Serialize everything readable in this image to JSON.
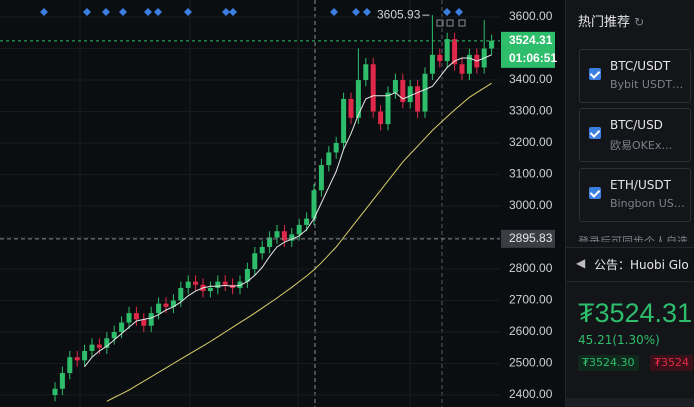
{
  "chart_data": {
    "type": "candlestick",
    "open": [
      2400,
      2420,
      2470,
      2520,
      2510,
      2540,
      2560,
      2550,
      2580,
      2600,
      2630,
      2660,
      2640,
      2620,
      2660,
      2690,
      2680,
      2700,
      2740,
      2760,
      2750,
      2730,
      2740,
      2760,
      2750,
      2740,
      2760,
      2800,
      2850,
      2870,
      2900,
      2920,
      2890,
      2910,
      2940,
      2960,
      3050,
      3130,
      3170,
      3200,
      3340,
      3280,
      3400,
      3450,
      3300,
      3260,
      3360,
      3400,
      3330,
      3380,
      3300,
      3420,
      3480,
      3460,
      3530,
      3450,
      3420,
      3480,
      3440,
      3500
    ],
    "high": [
      2440,
      2490,
      2540,
      2540,
      2560,
      2580,
      2580,
      2600,
      2620,
      2650,
      2680,
      2680,
      2660,
      2680,
      2710,
      2710,
      2720,
      2760,
      2780,
      2780,
      2770,
      2760,
      2780,
      2780,
      2770,
      2780,
      2820,
      2870,
      2890,
      2920,
      2940,
      2940,
      2930,
      2960,
      2980,
      3070,
      3150,
      3190,
      3220,
      3360,
      3360,
      3500,
      3470,
      3470,
      3320,
      3380,
      3420,
      3420,
      3400,
      3400,
      3440,
      3605.93,
      3500,
      3550,
      3550,
      3470,
      3500,
      3500,
      3590,
      3544
    ],
    "low": [
      2380,
      2400,
      2450,
      2490,
      2490,
      2520,
      2530,
      2530,
      2560,
      2580,
      2610,
      2620,
      2600,
      2600,
      2640,
      2660,
      2660,
      2680,
      2720,
      2730,
      2710,
      2710,
      2720,
      2730,
      2720,
      2720,
      2740,
      2780,
      2830,
      2850,
      2880,
      2870,
      2870,
      2890,
      2920,
      2940,
      3030,
      3110,
      3150,
      3180,
      3260,
      3260,
      3380,
      3280,
      3240,
      3240,
      3340,
      3310,
      3310,
      3280,
      3280,
      3400,
      3440,
      3440,
      3430,
      3400,
      3400,
      3420,
      3420,
      3480
    ],
    "close": [
      2420,
      2470,
      2520,
      2510,
      2540,
      2560,
      2550,
      2580,
      2600,
      2630,
      2660,
      2640,
      2620,
      2660,
      2690,
      2680,
      2700,
      2740,
      2760,
      2750,
      2730,
      2740,
      2760,
      2750,
      2740,
      2760,
      2800,
      2850,
      2870,
      2900,
      2920,
      2890,
      2910,
      2940,
      2960,
      3050,
      3130,
      3170,
      3200,
      3340,
      3280,
      3400,
      3450,
      3300,
      3260,
      3360,
      3400,
      3330,
      3380,
      3300,
      3420,
      3480,
      3460,
      3530,
      3450,
      3420,
      3480,
      3440,
      3500,
      3524.31
    ],
    "ma_fast": {
      "color": "#e8e8e8",
      "values": [
        null,
        null,
        null,
        null,
        2490,
        2520,
        2540,
        2555,
        2575,
        2595,
        2615,
        2635,
        2640,
        2645,
        2655,
        2670,
        2680,
        2695,
        2715,
        2730,
        2740,
        2745,
        2745,
        2748,
        2745,
        2748,
        2760,
        2780,
        2805,
        2840,
        2870,
        2885,
        2895,
        2905,
        2925,
        2960,
        3010,
        3060,
        3110,
        3180,
        3230,
        3290,
        3340,
        3350,
        3350,
        3350,
        3360,
        3340,
        3350,
        3360,
        3370,
        3380,
        3410,
        3440,
        3460,
        3470,
        3470,
        3460,
        3470,
        3480
      ]
    },
    "ma_slow": {
      "color": "#d8d06a",
      "values": [
        null,
        null,
        null,
        null,
        null,
        null,
        null,
        2380,
        2392,
        2404,
        2416,
        2430,
        2444,
        2458,
        2472,
        2486,
        2500,
        2514,
        2528,
        2542,
        2556,
        2570,
        2585,
        2600,
        2615,
        2630,
        2645,
        2660,
        2676,
        2692,
        2708,
        2725,
        2742,
        2760,
        2778,
        2798,
        2820,
        2845,
        2870,
        2900,
        2930,
        2960,
        2990,
        3020,
        3050,
        3080,
        3110,
        3140,
        3165,
        3190,
        3215,
        3240,
        3262,
        3284,
        3305,
        3325,
        3345,
        3360,
        3375,
        3390
      ]
    },
    "up_color": "#2ebd6b",
    "down_color": "#e0294a",
    "ylim": [
      2362,
      3654
    ],
    "yticks": [
      {
        "value": 2400,
        "label": "2400.00"
      },
      {
        "value": 2500,
        "label": "2500.00"
      },
      {
        "value": 2600,
        "label": "2600.00"
      },
      {
        "value": 2700,
        "label": "2700.00"
      },
      {
        "value": 2800,
        "label": "2800.00"
      },
      {
        "value": 2900,
        "label": "2900.00"
      },
      {
        "value": 3000,
        "label": "3000.00"
      },
      {
        "value": 3100,
        "label": "3100.00"
      },
      {
        "value": 3200,
        "label": "3200.00"
      },
      {
        "value": 3300,
        "label": "3300.00"
      },
      {
        "value": 3400,
        "label": "3400.00"
      },
      {
        "value": 3500,
        "label": "3500.00"
      },
      {
        "value": 3600,
        "label": "3600.00"
      }
    ],
    "grid": true,
    "last_price": 3524.31,
    "countdown": "01:06:51",
    "crosshair_price": 2895.83
  },
  "sidebar": {
    "title": "热门推荐",
    "items": [
      {
        "pair": "BTC/USDT",
        "exchange": "Bybit USDT…"
      },
      {
        "pair": "BTC/USD",
        "exchange": "欧易OKEx…"
      },
      {
        "pair": "ETH/USDT",
        "exchange": "Bingbon US…"
      }
    ],
    "login_hint": "登录后可同步个人自选",
    "notice_label": "公告：",
    "notice": "Huobi Glo",
    "price": "₮3524.31",
    "change": "45.21(1.30%)",
    "bid": "₮3524.30",
    "ask": "₮3524"
  }
}
